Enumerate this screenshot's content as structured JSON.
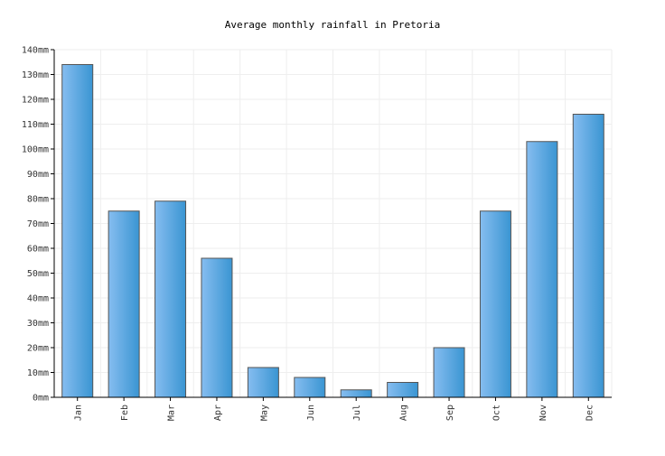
{
  "chart_data": {
    "type": "bar",
    "title": "Average monthly rainfall in Pretoria",
    "xlabel": "",
    "ylabel": "",
    "categories": [
      "Jan",
      "Feb",
      "Mar",
      "Apr",
      "May",
      "Jun",
      "Jul",
      "Aug",
      "Sep",
      "Oct",
      "Nov",
      "Dec"
    ],
    "values": [
      134,
      75,
      79,
      56,
      12,
      8,
      3,
      6,
      20,
      75,
      103,
      114
    ],
    "unit": "mm",
    "ylim": [
      0,
      140
    ],
    "yticks": [
      0,
      10,
      20,
      30,
      40,
      50,
      60,
      70,
      80,
      90,
      100,
      110,
      120,
      130,
      140
    ],
    "ytick_labels": [
      "0mm",
      "10mm",
      "20mm",
      "30mm",
      "40mm",
      "50mm",
      "60mm",
      "70mm",
      "80mm",
      "90mm",
      "100mm",
      "110mm",
      "120mm",
      "130mm",
      "140mm"
    ],
    "grid": true,
    "legend": "none",
    "colors": {
      "bar_light": "#86bdf0",
      "bar_dark": "#3a95d2",
      "bar_stroke": "#555555",
      "grid": "#eeeeee",
      "axis": "#000000"
    }
  }
}
